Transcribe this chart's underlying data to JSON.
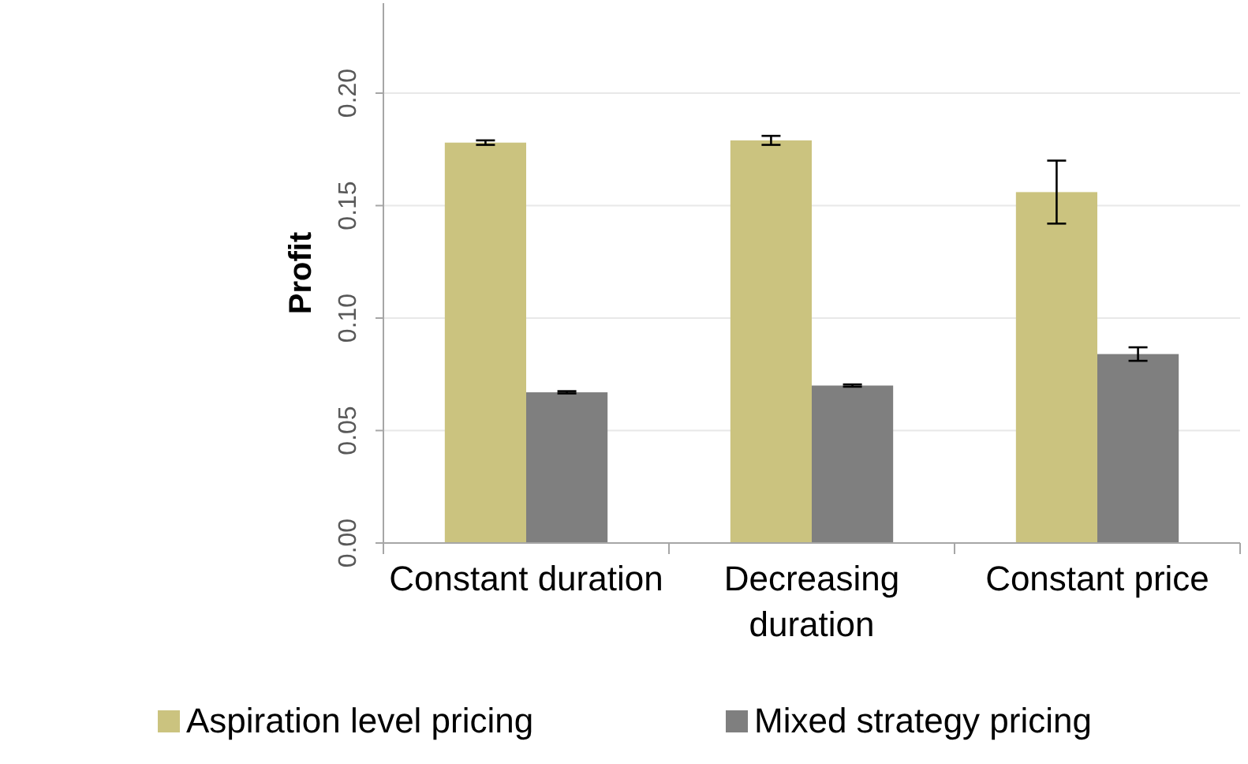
{
  "chart_data": {
    "type": "bar",
    "ylabel": "Profit",
    "categories": [
      "Constant duration",
      "Decreasing duration",
      "Constant price"
    ],
    "series": [
      {
        "name": "Aspiration level pricing",
        "color": "#cbc37f",
        "values": [
          0.178,
          0.179,
          0.156
        ],
        "errors": [
          0.001,
          0.002,
          0.014
        ]
      },
      {
        "name": "Mixed strategy pricing",
        "color": "#7f7f7f",
        "values": [
          0.067,
          0.07,
          0.084
        ],
        "errors": [
          0.0005,
          0.0005,
          0.003
        ]
      }
    ],
    "ylim": [
      0,
      0.24
    ],
    "yticks": [
      {
        "value": 0,
        "label": "0.00"
      },
      {
        "value": 0.05,
        "label": "0.05"
      },
      {
        "value": 0.1,
        "label": "0.10"
      },
      {
        "value": 0.15,
        "label": "0.15"
      },
      {
        "value": 0.2,
        "label": "0.20"
      }
    ],
    "grid": "y",
    "legend": "bottom"
  }
}
